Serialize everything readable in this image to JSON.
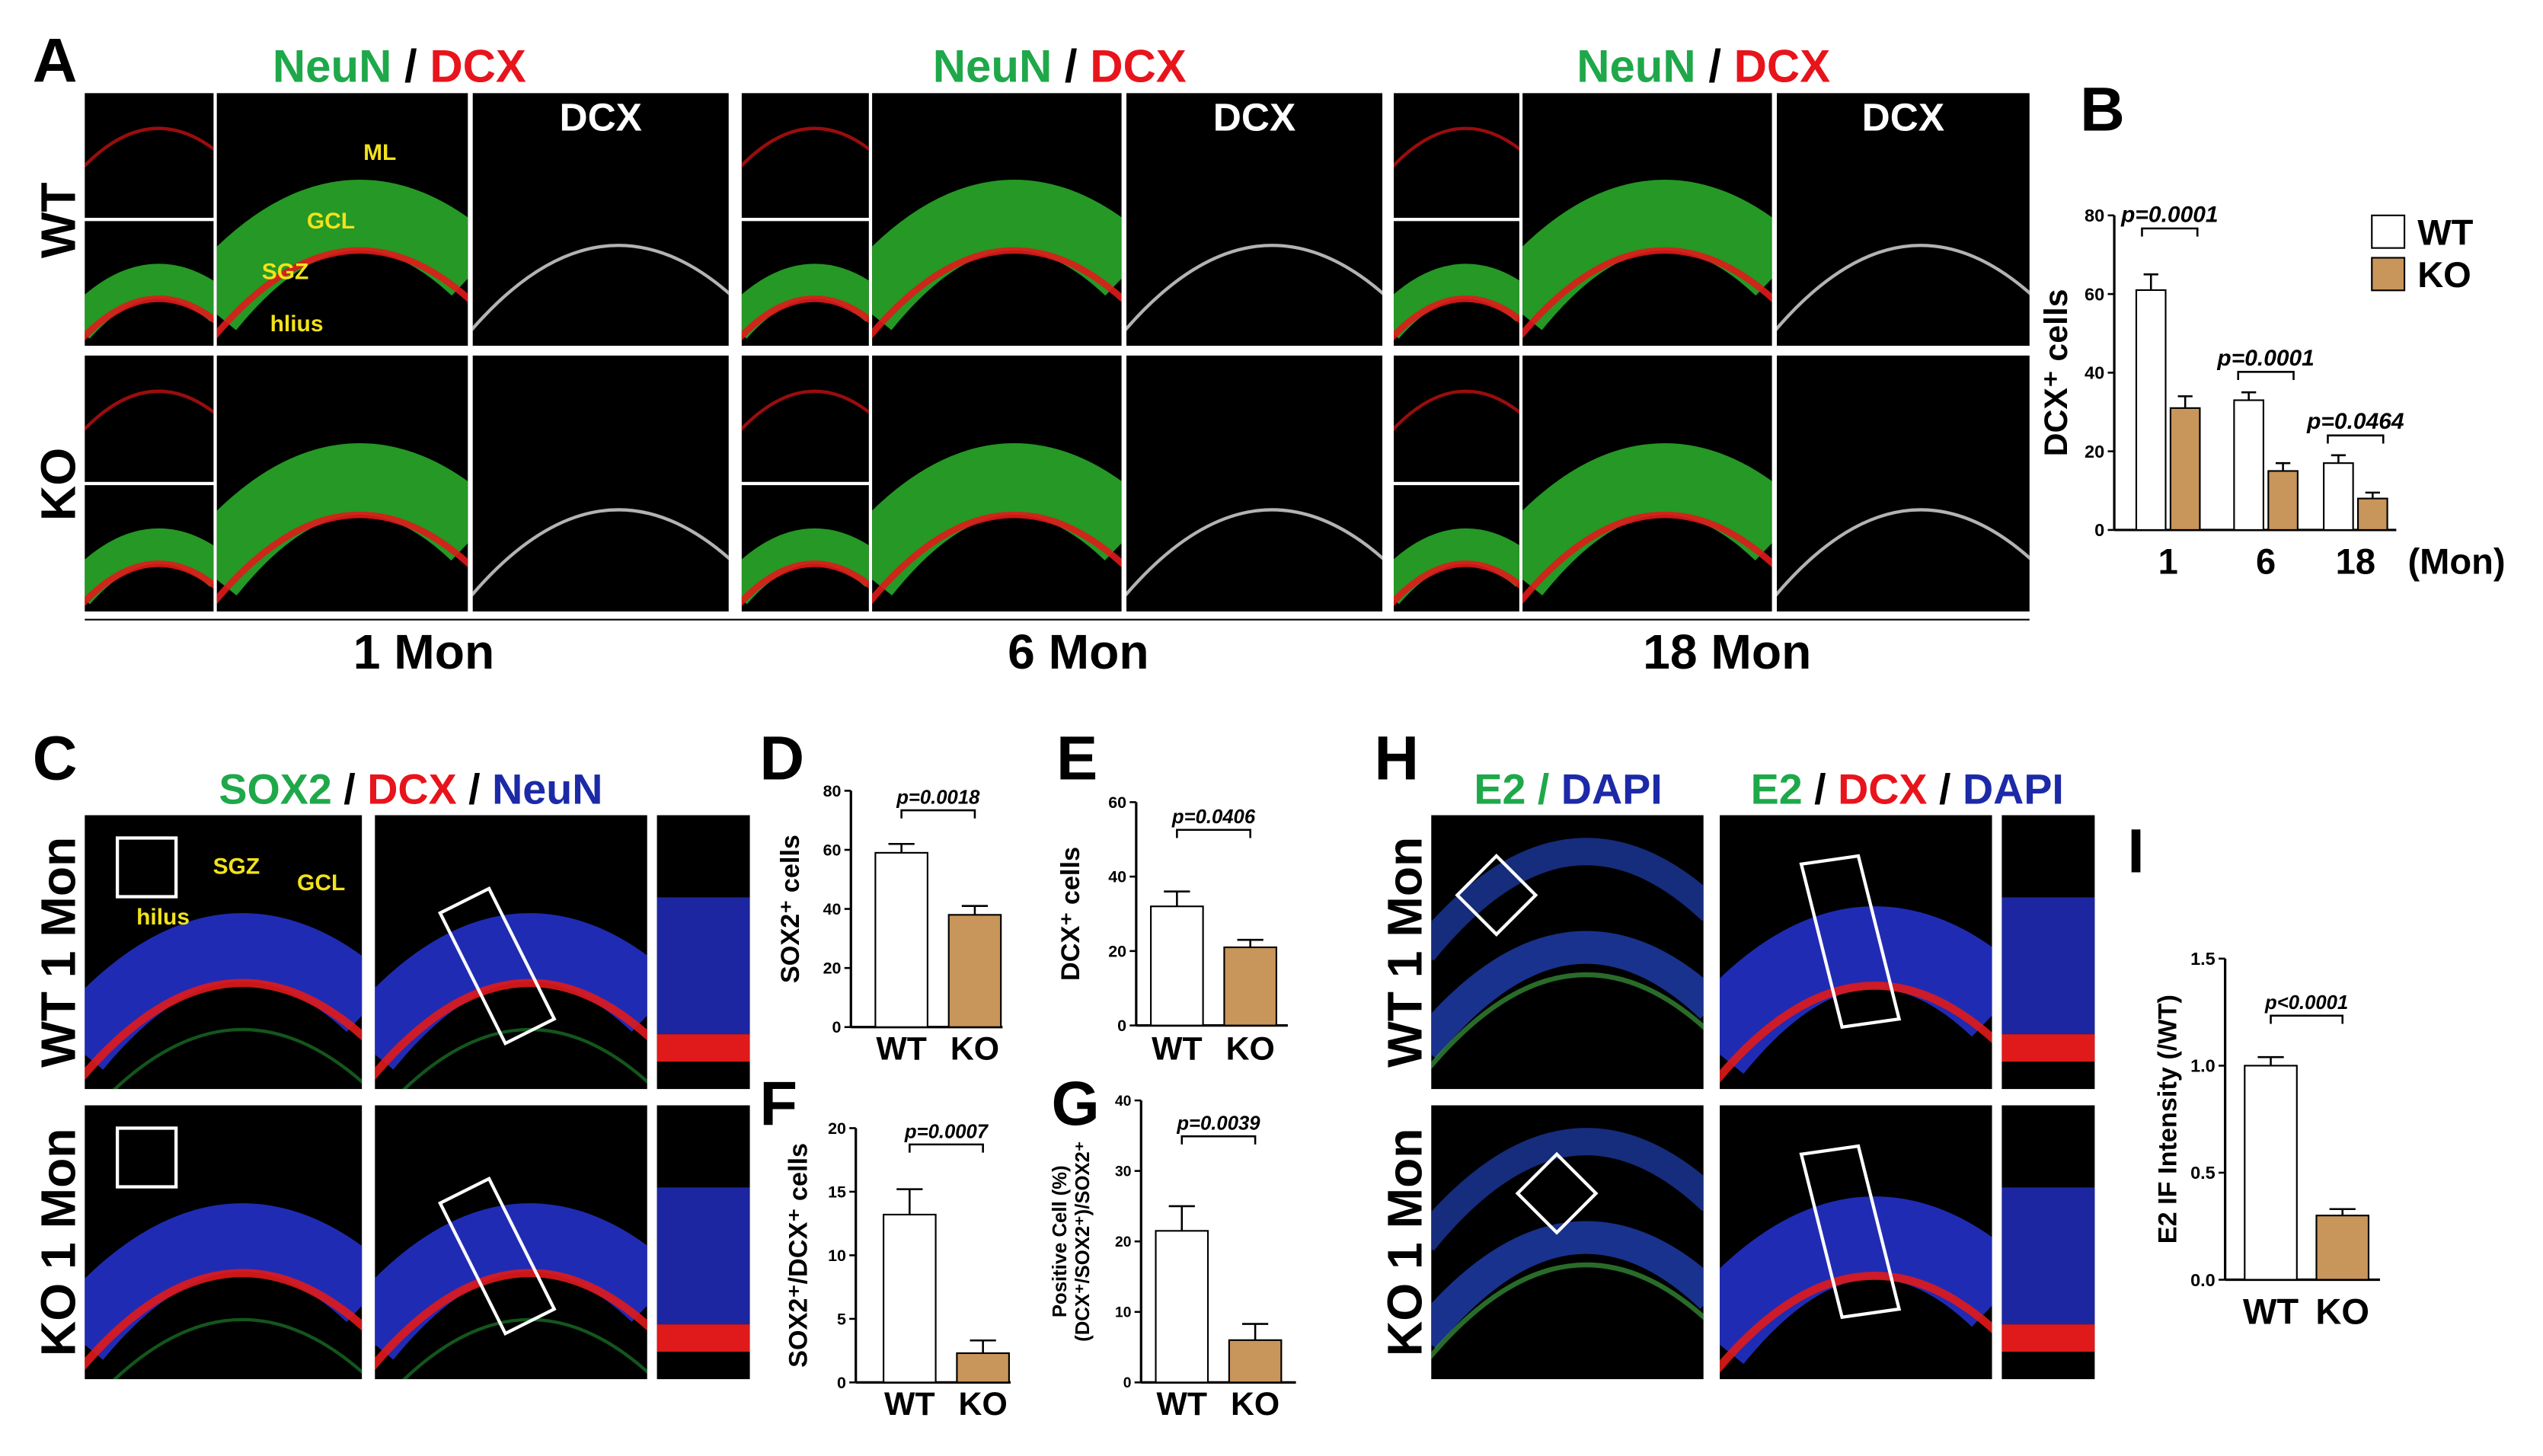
{
  "panel_labels": [
    "A",
    "B",
    "C",
    "D",
    "E",
    "F",
    "G",
    "H",
    "I"
  ],
  "panel_a": {
    "columns": [
      {
        "header": [
          "NeuN",
          "/",
          "DCX"
        ],
        "channel": "DCX",
        "label": "1 Mon"
      },
      {
        "header": [
          "NeuN",
          "/",
          "DCX"
        ],
        "channel": "DCX",
        "label": "6 Mon"
      },
      {
        "header": [
          "NeuN",
          "/",
          "DCX"
        ],
        "channel": "DCX",
        "label": "18 Mon"
      }
    ],
    "rows": [
      "WT",
      "KO"
    ],
    "annotations": [
      "ML",
      "GCL",
      "SGZ",
      "hlius"
    ]
  },
  "panel_c": {
    "header": [
      "SOX2",
      "/",
      "DCX",
      "/",
      "NeuN"
    ],
    "rows": [
      "WT 1 Mon",
      "KO 1 Mon"
    ],
    "annotations": [
      "SGZ",
      "GCL",
      "hilus"
    ]
  },
  "panel_h": {
    "header_left": [
      "E2 /",
      "DAPI"
    ],
    "header_right": [
      "E2",
      "/",
      "DCX",
      "/",
      "DAPI"
    ],
    "rows": [
      "WT 1 Mon",
      "KO 1 Mon"
    ]
  },
  "chart_data": [
    {
      "type": "bar",
      "y_label": "DCX⁺ cells",
      "x_label": "(Mon)",
      "categories": [
        "1",
        "6",
        "18"
      ],
      "series": [
        {
          "name": "WT",
          "color": "#ffffff",
          "values": [
            61,
            33,
            17
          ],
          "errors": [
            4,
            2,
            2
          ]
        },
        {
          "name": "KO",
          "color": "#c8955a",
          "values": [
            31,
            15,
            8
          ],
          "errors": [
            3,
            2,
            1.5
          ]
        }
      ],
      "ylim": [
        0,
        80
      ],
      "yticks": [
        0,
        20,
        40,
        60,
        80
      ],
      "legend": "right",
      "annotations": [
        "p=0.0001",
        "p=0.0001",
        "p=0.0464"
      ]
    },
    {
      "type": "bar",
      "y_label": "SOX2⁺ cells",
      "categories": [
        "WT",
        "KO"
      ],
      "values": [
        59,
        38
      ],
      "errors": [
        3,
        3
      ],
      "colors": [
        "#ffffff",
        "#c8955a"
      ],
      "ylim": [
        0,
        80
      ],
      "yticks": [
        0,
        20,
        40,
        60,
        80
      ],
      "annotations": [
        "p=0.0018"
      ]
    },
    {
      "type": "bar",
      "y_label": "DCX⁺ cells",
      "categories": [
        "WT",
        "KO"
      ],
      "values": [
        32,
        21
      ],
      "errors": [
        4,
        2
      ],
      "colors": [
        "#ffffff",
        "#c8955a"
      ],
      "ylim": [
        0,
        60
      ],
      "yticks": [
        0,
        20,
        40,
        60
      ],
      "annotations": [
        "p=0.0406"
      ]
    },
    {
      "type": "bar",
      "y_label": "SOX2⁺/DCX⁺ cells",
      "categories": [
        "WT",
        "KO"
      ],
      "values": [
        13.2,
        2.3
      ],
      "errors": [
        2,
        1
      ],
      "colors": [
        "#ffffff",
        "#c8955a"
      ],
      "ylim": [
        0,
        20
      ],
      "yticks": [
        0,
        5,
        10,
        15,
        20
      ],
      "annotations": [
        "p=0.0007"
      ]
    },
    {
      "type": "bar",
      "y_label": [
        "Positive Cell (%)",
        "(DCX⁺/SOX2⁺)/SOX2⁺"
      ],
      "categories": [
        "WT",
        "KO"
      ],
      "values": [
        21.5,
        6
      ],
      "errors": [
        3.5,
        2.3
      ],
      "colors": [
        "#ffffff",
        "#c8955a"
      ],
      "ylim": [
        0,
        40
      ],
      "yticks": [
        0,
        10,
        20,
        30,
        40
      ],
      "annotations": [
        "p=0.0039"
      ]
    },
    {
      "type": "bar",
      "y_label": "E2 IF Intensity (/WT)",
      "categories": [
        "WT",
        "KO"
      ],
      "values": [
        1.0,
        0.3
      ],
      "errors": [
        0.04,
        0.03
      ],
      "colors": [
        "#ffffff",
        "#c8955a"
      ],
      "ylim": [
        0,
        1.5
      ],
      "yticks": [
        {
          "value": 0,
          "label": "0.0"
        },
        {
          "value": 0.5,
          "label": "0.5"
        },
        {
          "value": 1,
          "label": "1.0"
        },
        {
          "value": 1.5,
          "label": "1.5"
        }
      ],
      "annotations": [
        "p<0.0001"
      ]
    }
  ]
}
